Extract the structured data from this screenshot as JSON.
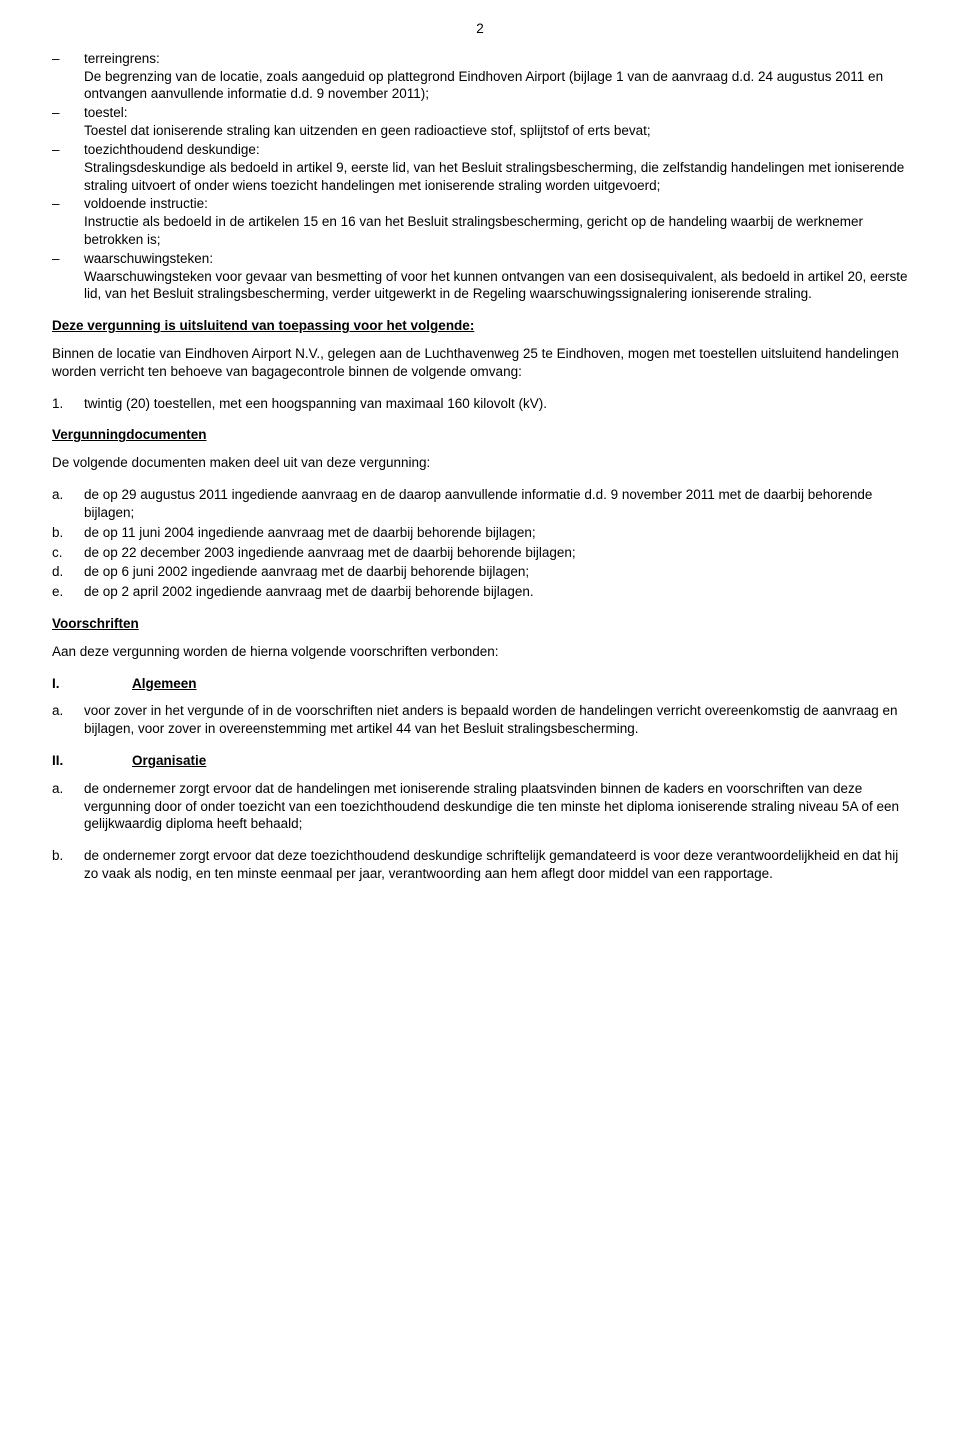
{
  "page_number": "2",
  "definitions": [
    {
      "term": "terreingrens:",
      "desc": "De begrenzing van de locatie, zoals aangeduid op plattegrond Eindhoven Airport (bijlage 1 van de aanvraag d.d. 24 augustus 2011 en ontvangen aanvullende informatie d.d. 9 november 2011);"
    },
    {
      "term": "toestel:",
      "desc": "Toestel dat ioniserende straling kan uitzenden en geen radioactieve stof, splijtstof of erts bevat;"
    },
    {
      "term": "toezichthoudend deskundige:",
      "desc": "Stralingsdeskundige als bedoeld in artikel 9, eerste lid, van het Besluit stralingsbescherming, die zelfstandig handelingen met ioniserende straling uitvoert of onder wiens toezicht handelingen met ioniserende straling worden uitgevoerd;"
    },
    {
      "term": "voldoende instructie:",
      "desc": "Instructie als bedoeld in de artikelen 15 en 16 van het Besluit stralingsbescherming, gericht op de handeling waarbij de werknemer betrokken is;"
    },
    {
      "term": "waarschuwingsteken:",
      "desc": "Waarschuwingsteken voor gevaar van besmetting of voor het kunnen ontvangen van een dosisequivalent, als bedoeld in artikel 20, eerste lid, van het Besluit stralingsbescherming, verder uitgewerkt in de Regeling waarschuwingssignalering ioniserende straling."
    }
  ],
  "scope": {
    "heading": "Deze vergunning is uitsluitend van toepassing voor het volgende:",
    "para": "Binnen de locatie van Eindhoven Airport N.V., gelegen aan de Luchthavenweg 25 te Eindhoven, mogen met toestellen uitsluitend handelingen worden verricht ten behoeve van bagagecontrole binnen de volgende omvang:",
    "item_marker": "1.",
    "item_text": "twintig (20) toestellen, met een hoogspanning van maximaal 160 kilovolt (kV)."
  },
  "docs": {
    "heading": "Vergunningdocumenten",
    "para": "De volgende documenten maken deel uit van deze vergunning:",
    "items": [
      {
        "m": "a.",
        "t": "de op 29 augustus 2011 ingediende aanvraag en de daarop aanvullende informatie d.d. 9 november 2011 met de daarbij behorende bijlagen;"
      },
      {
        "m": "b.",
        "t": "de op 11 juni 2004 ingediende aanvraag met de daarbij behorende bijlagen;"
      },
      {
        "m": "c.",
        "t": "de op 22 december 2003 ingediende aanvraag met de daarbij behorende bijlagen;"
      },
      {
        "m": "d.",
        "t": "de op 6 juni 2002 ingediende aanvraag met de daarbij behorende bijlagen;"
      },
      {
        "m": "e.",
        "t": "de op 2 april 2002 ingediende aanvraag met de daarbij behorende bijlagen."
      }
    ]
  },
  "voorschriften": {
    "heading": "Voorschriften",
    "para": "Aan deze vergunning worden de hierna volgende voorschriften verbonden:",
    "section1": {
      "num": "I.",
      "label": "Algemeen",
      "items": [
        {
          "m": "a.",
          "t": "voor zover in het vergunde of in de voorschriften niet anders is bepaald worden de handelingen verricht overeenkomstig de aanvraag en bijlagen, voor zover in overeenstemming met artikel 44 van het Besluit stralingsbescherming."
        }
      ]
    },
    "section2": {
      "num": "II.",
      "label": "Organisatie",
      "items": [
        {
          "m": "a.",
          "t": "de ondernemer zorgt ervoor dat de handelingen met ioniserende straling plaatsvinden binnen de kaders en voorschriften van deze vergunning door of onder toezicht van een toezichthoudend deskundige die ten minste het diploma ioniserende straling niveau 5A of een gelijkwaardig diploma heeft behaald;"
        },
        {
          "m": "b.",
          "t": "de ondernemer zorgt ervoor dat deze toezichthoudend deskundige schriftelijk gemandateerd is voor deze verantwoordelijkheid en dat hij zo vaak als nodig, en ten minste eenmaal per jaar, verantwoording aan hem aflegt door middel van een rapportage."
        }
      ]
    }
  }
}
